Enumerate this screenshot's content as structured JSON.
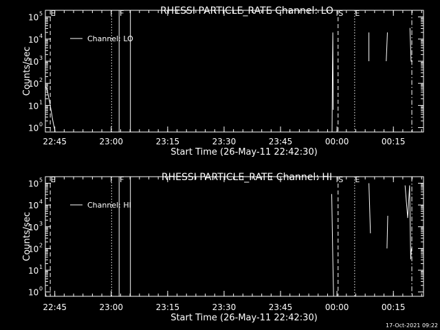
{
  "footer": {
    "date": "17-Oct-2021 09:22"
  },
  "chart_data": [
    {
      "type": "line",
      "title": "RHESSI PARTICLE_RATE Channel: LO",
      "xlabel": "Start Time (26-May-11 22:42:30)",
      "ylabel": "Counts/sec",
      "x_ticks": [
        "22:45",
        "23:00",
        "23:15",
        "23:30",
        "23:45",
        "00:00",
        "00:15"
      ],
      "y_ticks": [
        "10",
        "10",
        "10",
        "10",
        "10",
        "10"
      ],
      "y_tick_exponents": [
        "0",
        "1",
        "2",
        "3",
        "4",
        "5"
      ],
      "xlim_minutes": [
        0,
        100.5
      ],
      "ylim_log10": [
        -0.2,
        5.3
      ],
      "y_scale": "log",
      "legend": {
        "entries": [
          "Channel: LO"
        ],
        "placement": "top-left"
      },
      "markers": [
        {
          "label": "E",
          "minute": 1.3,
          "style": "dashed"
        },
        {
          "label": "",
          "minute": 17.6,
          "style": "dotted"
        },
        {
          "label": "F",
          "minute": 19.6,
          "style": "solid"
        },
        {
          "label": "",
          "minute": 22.6,
          "style": "solid"
        },
        {
          "label": "S",
          "minute": 77.8,
          "style": "dashed"
        },
        {
          "label": "E",
          "minute": 82.2,
          "style": "dotted"
        },
        {
          "label": "",
          "minute": 97.4,
          "style": "dashdot"
        }
      ],
      "series": [
        {
          "name": "Channel: LO",
          "segments": [
            [
              [
                -3,
                2.3
              ],
              [
                -1.5,
                2.2
              ],
              [
                -0.3,
                2.0
              ],
              [
                0.5,
                1.7
              ],
              [
                1.3,
                1.0
              ],
              [
                2.0,
                0.3
              ],
              [
                2.6,
                -0.2
              ]
            ],
            [
              [
                76.2,
                -0.2
              ],
              [
                76.3,
                2.8
              ],
              [
                76.4,
                4.3
              ],
              [
                76.5,
                0.8
              ]
            ],
            [
              [
                86.0,
                4.3
              ],
              [
                86.0,
                3.0
              ]
            ],
            [
              [
                90.9,
                4.3
              ],
              [
                90.6,
                3.0
              ]
            ],
            [
              [
                96.9,
                4.5
              ],
              [
                97.2,
                3.0
              ],
              [
                97.6,
                3.0
              ]
            ]
          ]
        }
      ]
    },
    {
      "type": "line",
      "title": "RHESSI PARTICLE_RATE Channel: HI",
      "xlabel": "Start Time (26-May-11 22:42:30)",
      "ylabel": "Counts/sec",
      "x_ticks": [
        "22:45",
        "23:00",
        "23:15",
        "23:30",
        "23:45",
        "00:00",
        "00:15"
      ],
      "y_ticks": [
        "10",
        "10",
        "10",
        "10",
        "10",
        "10"
      ],
      "y_tick_exponents": [
        "0",
        "1",
        "2",
        "3",
        "4",
        "5"
      ],
      "xlim_minutes": [
        0,
        100.5
      ],
      "ylim_log10": [
        -0.2,
        5.3
      ],
      "y_scale": "log",
      "legend": {
        "entries": [
          "Channel: HI"
        ],
        "placement": "top-left"
      },
      "markers": [
        {
          "label": "E",
          "minute": 1.3,
          "style": "dashed"
        },
        {
          "label": "",
          "minute": 17.6,
          "style": "dotted"
        },
        {
          "label": "F",
          "minute": 19.6,
          "style": "solid"
        },
        {
          "label": "",
          "minute": 22.6,
          "style": "solid"
        },
        {
          "label": "S",
          "minute": 77.8,
          "style": "dashed"
        },
        {
          "label": "E",
          "minute": 82.2,
          "style": "dotted"
        },
        {
          "label": "",
          "minute": 97.4,
          "style": "dashdot"
        }
      ],
      "series": [
        {
          "name": "Channel: HI",
          "segments": [
            [
              [
                -2.5,
                0.3
              ],
              [
                -1.2,
                0.7
              ],
              [
                -0.5,
                0.4
              ],
              [
                0.2,
                -0.2
              ]
            ],
            [
              [
                76.1,
                4.5
              ],
              [
                76.4,
                1.5
              ],
              [
                76.6,
                -0.2
              ]
            ],
            [
              [
                86.0,
                5.0
              ],
              [
                86.4,
                2.7
              ]
            ],
            [
              [
                91.0,
                3.5
              ],
              [
                90.8,
                2.0
              ]
            ],
            [
              [
                95.6,
                4.9
              ],
              [
                96.3,
                3.4
              ],
              [
                96.8,
                4.9
              ],
              [
                97.1,
                1.5
              ],
              [
                97.3,
                2.0
              ]
            ]
          ]
        }
      ]
    }
  ]
}
